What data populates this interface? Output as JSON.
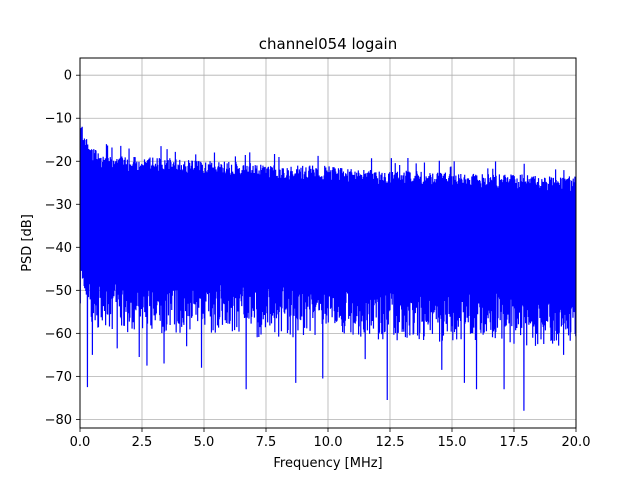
{
  "chart_data": {
    "type": "line",
    "title": "channel054 logain",
    "xlabel": "Frequency [MHz]",
    "ylabel": "PSD [dB]",
    "xlim": [
      0,
      20
    ],
    "ylim": [
      -82,
      4
    ],
    "grid": true,
    "x_ticks": [
      "0.0",
      "2.5",
      "5.0",
      "7.5",
      "10.0",
      "12.5",
      "15.0",
      "17.5",
      "20.0"
    ],
    "y_ticks": [
      "0",
      "−10",
      "−20",
      "−30",
      "−40",
      "−50",
      "−60",
      "−70",
      "−80"
    ],
    "series": [
      {
        "color": "#0000ff",
        "envelope_x": [
          0.0,
          0.2,
          0.5,
          1.0,
          2.0,
          3.0,
          4.0,
          5.0,
          6.0,
          7.0,
          8.0,
          9.0,
          10.0,
          11.0,
          12.0,
          13.0,
          14.0,
          15.0,
          16.0,
          17.0,
          18.0,
          19.0,
          20.0
        ],
        "envelope_upper": [
          -10,
          -14,
          -17,
          -18.5,
          -19,
          -19,
          -19.5,
          -20,
          -20,
          -20.5,
          -21,
          -21,
          -21,
          -21.5,
          -22,
          -22,
          -22.5,
          -22.5,
          -23,
          -23,
          -23,
          -23.5,
          -23.5
        ],
        "envelope_lower": [
          -50,
          -52,
          -55,
          -55,
          -56,
          -56,
          -56,
          -56,
          -56,
          -57,
          -57,
          -57,
          -57,
          -57,
          -58,
          -58,
          -58,
          -58,
          -58,
          -58,
          -59,
          -59,
          -59
        ],
        "dips": [
          {
            "x": 0.3,
            "y": -72.5
          },
          {
            "x": 0.5,
            "y": -65
          },
          {
            "x": 1.5,
            "y": -63.5
          },
          {
            "x": 2.4,
            "y": -65.5
          },
          {
            "x": 2.7,
            "y": -67.5
          },
          {
            "x": 3.4,
            "y": -67
          },
          {
            "x": 4.3,
            "y": -63
          },
          {
            "x": 4.9,
            "y": -68
          },
          {
            "x": 6.7,
            "y": -73
          },
          {
            "x": 8.7,
            "y": -71.5
          },
          {
            "x": 9.8,
            "y": -70.5
          },
          {
            "x": 11.5,
            "y": -66
          },
          {
            "x": 12.4,
            "y": -75.5
          },
          {
            "x": 14.6,
            "y": -68.5
          },
          {
            "x": 15.5,
            "y": -71.5
          },
          {
            "x": 16.0,
            "y": -73
          },
          {
            "x": 17.1,
            "y": -73
          },
          {
            "x": 17.9,
            "y": -78
          },
          {
            "x": 19.5,
            "y": -65
          }
        ]
      }
    ]
  }
}
